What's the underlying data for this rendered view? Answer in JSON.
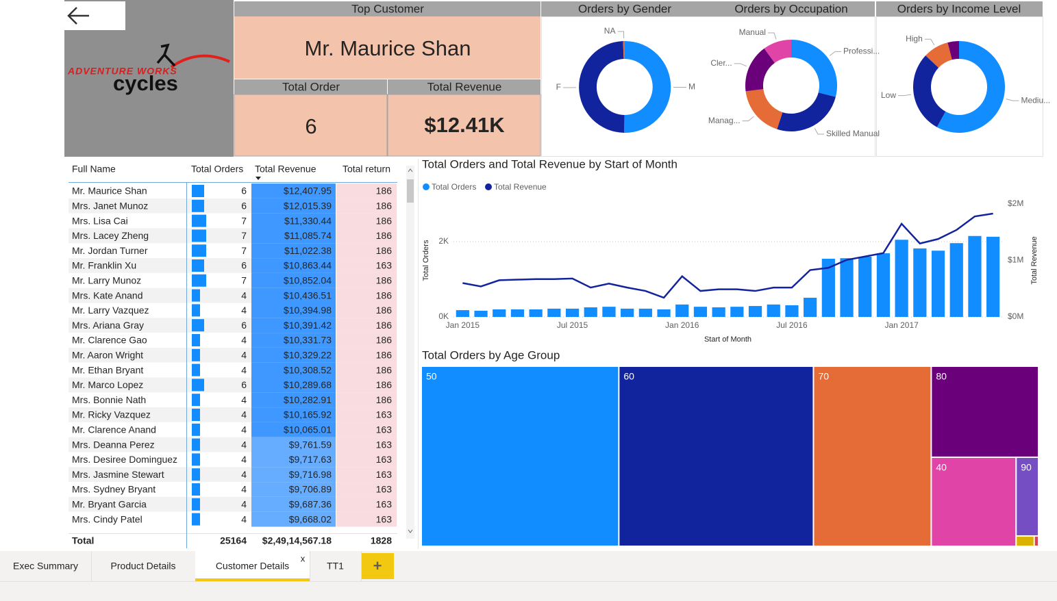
{
  "logo": {
    "brand": "ADVENTURE WORKS",
    "name": "cycles"
  },
  "cards": [
    {
      "title": "Top Customer",
      "value": "Mr. Maurice Shan"
    },
    {
      "title": "Total Order",
      "value": 6
    },
    {
      "title": "Total Revenue",
      "value": "$12.41K"
    }
  ],
  "chart_data": [
    {
      "type": "pie",
      "title": "Orders by Gender",
      "categories": [
        "M",
        "F",
        "NA"
      ],
      "values": [
        50.2,
        49.2,
        0.6
      ],
      "colors": [
        "#118DFF",
        "#12239E",
        "#E66C37"
      ]
    },
    {
      "type": "pie",
      "title": "Orders by Occupation",
      "categories": [
        "Professi...",
        "Skilled Manual",
        "Manag...",
        "Cler...",
        "Manual"
      ],
      "values": [
        29,
        26,
        18,
        17,
        10
      ],
      "colors": [
        "#118DFF",
        "#12239E",
        "#E66C37",
        "#6B007B",
        "#E044A7"
      ]
    },
    {
      "type": "pie",
      "title": "Orders by Income Level",
      "categories": [
        "Mediu...",
        "Low",
        "High",
        null
      ],
      "values": [
        58,
        29,
        9,
        4
      ],
      "colors": [
        "#118DFF",
        "#12239E",
        "#E66C37",
        "#6B007B"
      ]
    },
    {
      "type": "combo",
      "title": "Total Orders and Total Revenue by Start of Month",
      "x": [
        "2015-01",
        "2015-02",
        "2015-03",
        "2015-04",
        "2015-05",
        "2015-06",
        "2015-07",
        "2015-08",
        "2015-09",
        "2015-10",
        "2015-11",
        "2015-12",
        "2016-01",
        "2016-02",
        "2016-03",
        "2016-04",
        "2016-05",
        "2016-06",
        "2016-07",
        "2016-08",
        "2016-09",
        "2016-10",
        "2016-11",
        "2016-12",
        "2017-01",
        "2017-02",
        "2017-03",
        "2017-04",
        "2017-05",
        "2017-06"
      ],
      "series": [
        {
          "name": "Total Orders",
          "type": "bar",
          "color": "#118DFF",
          "values": [
            180,
            165,
            200,
            200,
            200,
            220,
            220,
            255,
            270,
            220,
            220,
            200,
            330,
            270,
            255,
            270,
            290,
            330,
            310,
            510,
            1545,
            1560,
            1600,
            1690,
            2050,
            1820,
            1760,
            1960,
            2150,
            2130
          ]
        },
        {
          "name": "Total Revenue",
          "type": "line",
          "axis": "y2",
          "color": "#12239E",
          "values": [
            600000,
            540000,
            650000,
            660000,
            670000,
            670000,
            680000,
            520000,
            590000,
            520000,
            460000,
            340000,
            720000,
            460000,
            490000,
            490000,
            460000,
            520000,
            520000,
            830000,
            870000,
            1010000,
            1070000,
            1130000,
            1650000,
            1300000,
            1380000,
            1540000,
            1780000,
            1830000
          ]
        }
      ],
      "xticks": [
        {
          "value": "2015-01",
          "label": "Jan 2015"
        },
        {
          "value": "2015-07",
          "label": "Jul 2015"
        },
        {
          "value": "2016-01",
          "label": "Jan 2016"
        },
        {
          "value": "2016-07",
          "label": "Jul 2016"
        },
        {
          "value": "2017-01",
          "label": "Jan 2017"
        }
      ],
      "ylim": [
        0,
        3000
      ],
      "yticks": [
        {
          "value": 0,
          "label": "0K"
        },
        {
          "value": 2000,
          "label": "2K"
        }
      ],
      "y2lim": [
        0,
        2000000
      ],
      "y2ticks": [
        {
          "value": 0,
          "label": "$0M"
        },
        {
          "value": 1000000,
          "label": "$1M"
        },
        {
          "value": 2000000,
          "label": "$2M"
        }
      ],
      "xlabel": "Start of Month",
      "ylabel": "Total Orders",
      "y2label": "Total Revenue",
      "grid": true,
      "legend": "top-left"
    },
    {
      "type": "treemap",
      "title": "Total Orders by Age Group",
      "categories": [
        "50",
        "60",
        "70",
        "80",
        "40",
        "90",
        null,
        null
      ],
      "values": [
        8050,
        7930,
        4800,
        2210,
        1710,
        400,
        42,
        10
      ],
      "colors": [
        "#118DFF",
        "#12239E",
        "#E66C37",
        "#6B007B",
        "#E044A7",
        "#744EC2",
        "#D9B300",
        "#D64550"
      ]
    }
  ],
  "table": {
    "columns": [
      "Full Name",
      "Total Orders",
      "Total Revenue",
      "Total return"
    ],
    "rows": [
      [
        "Mr. Maurice Shan",
        6,
        "$12,407.95",
        186
      ],
      [
        "Mrs. Janet Munoz",
        6,
        "$12,015.39",
        186
      ],
      [
        "Mrs. Lisa Cai",
        7,
        "$11,330.44",
        186
      ],
      [
        "Mrs. Lacey Zheng",
        7,
        "$11,085.74",
        186
      ],
      [
        "Mr. Jordan Turner",
        7,
        "$11,022.38",
        186
      ],
      [
        "Mr. Franklin Xu",
        6,
        "$10,863.44",
        163
      ],
      [
        "Mr. Larry Munoz",
        7,
        "$10,852.04",
        186
      ],
      [
        "Mrs. Kate Anand",
        4,
        "$10,436.51",
        186
      ],
      [
        "Mr. Larry Vazquez",
        4,
        "$10,394.98",
        186
      ],
      [
        "Mrs. Ariana Gray",
        6,
        "$10,391.42",
        186
      ],
      [
        "Mr. Clarence Gao",
        4,
        "$10,331.73",
        186
      ],
      [
        "Mr. Aaron Wright",
        4,
        "$10,329.22",
        186
      ],
      [
        "Mr. Ethan Bryant",
        4,
        "$10,308.52",
        186
      ],
      [
        "Mr. Marco Lopez",
        6,
        "$10,289.68",
        186
      ],
      [
        "Mrs. Bonnie Nath",
        4,
        "$10,282.91",
        186
      ],
      [
        "Mr. Ricky Vazquez",
        4,
        "$10,165.92",
        163
      ],
      [
        "Mr. Clarence Anand",
        4,
        "$10,065.01",
        163
      ],
      [
        "Mrs. Deanna Perez",
        4,
        "$9,761.59",
        163
      ],
      [
        "Mrs. Desiree Dominguez",
        4,
        "$9,717.63",
        163
      ],
      [
        "Mrs. Jasmine Stewart",
        4,
        "$9,716.98",
        163
      ],
      [
        "Mrs. Sydney Bryant",
        4,
        "$9,706.89",
        163
      ],
      [
        "Mr. Bryant Garcia",
        4,
        "$9,687.36",
        163
      ],
      [
        "Mrs. Cindy Patel",
        4,
        "$9,668.02",
        163
      ]
    ],
    "total": [
      "Total",
      25164,
      "$2,49,14,567.18",
      1828
    ]
  },
  "tabs": {
    "pages": [
      "Exec Summary",
      "Product Details",
      "Customer Details",
      "TT1"
    ],
    "close": "x",
    "add": "+"
  }
}
